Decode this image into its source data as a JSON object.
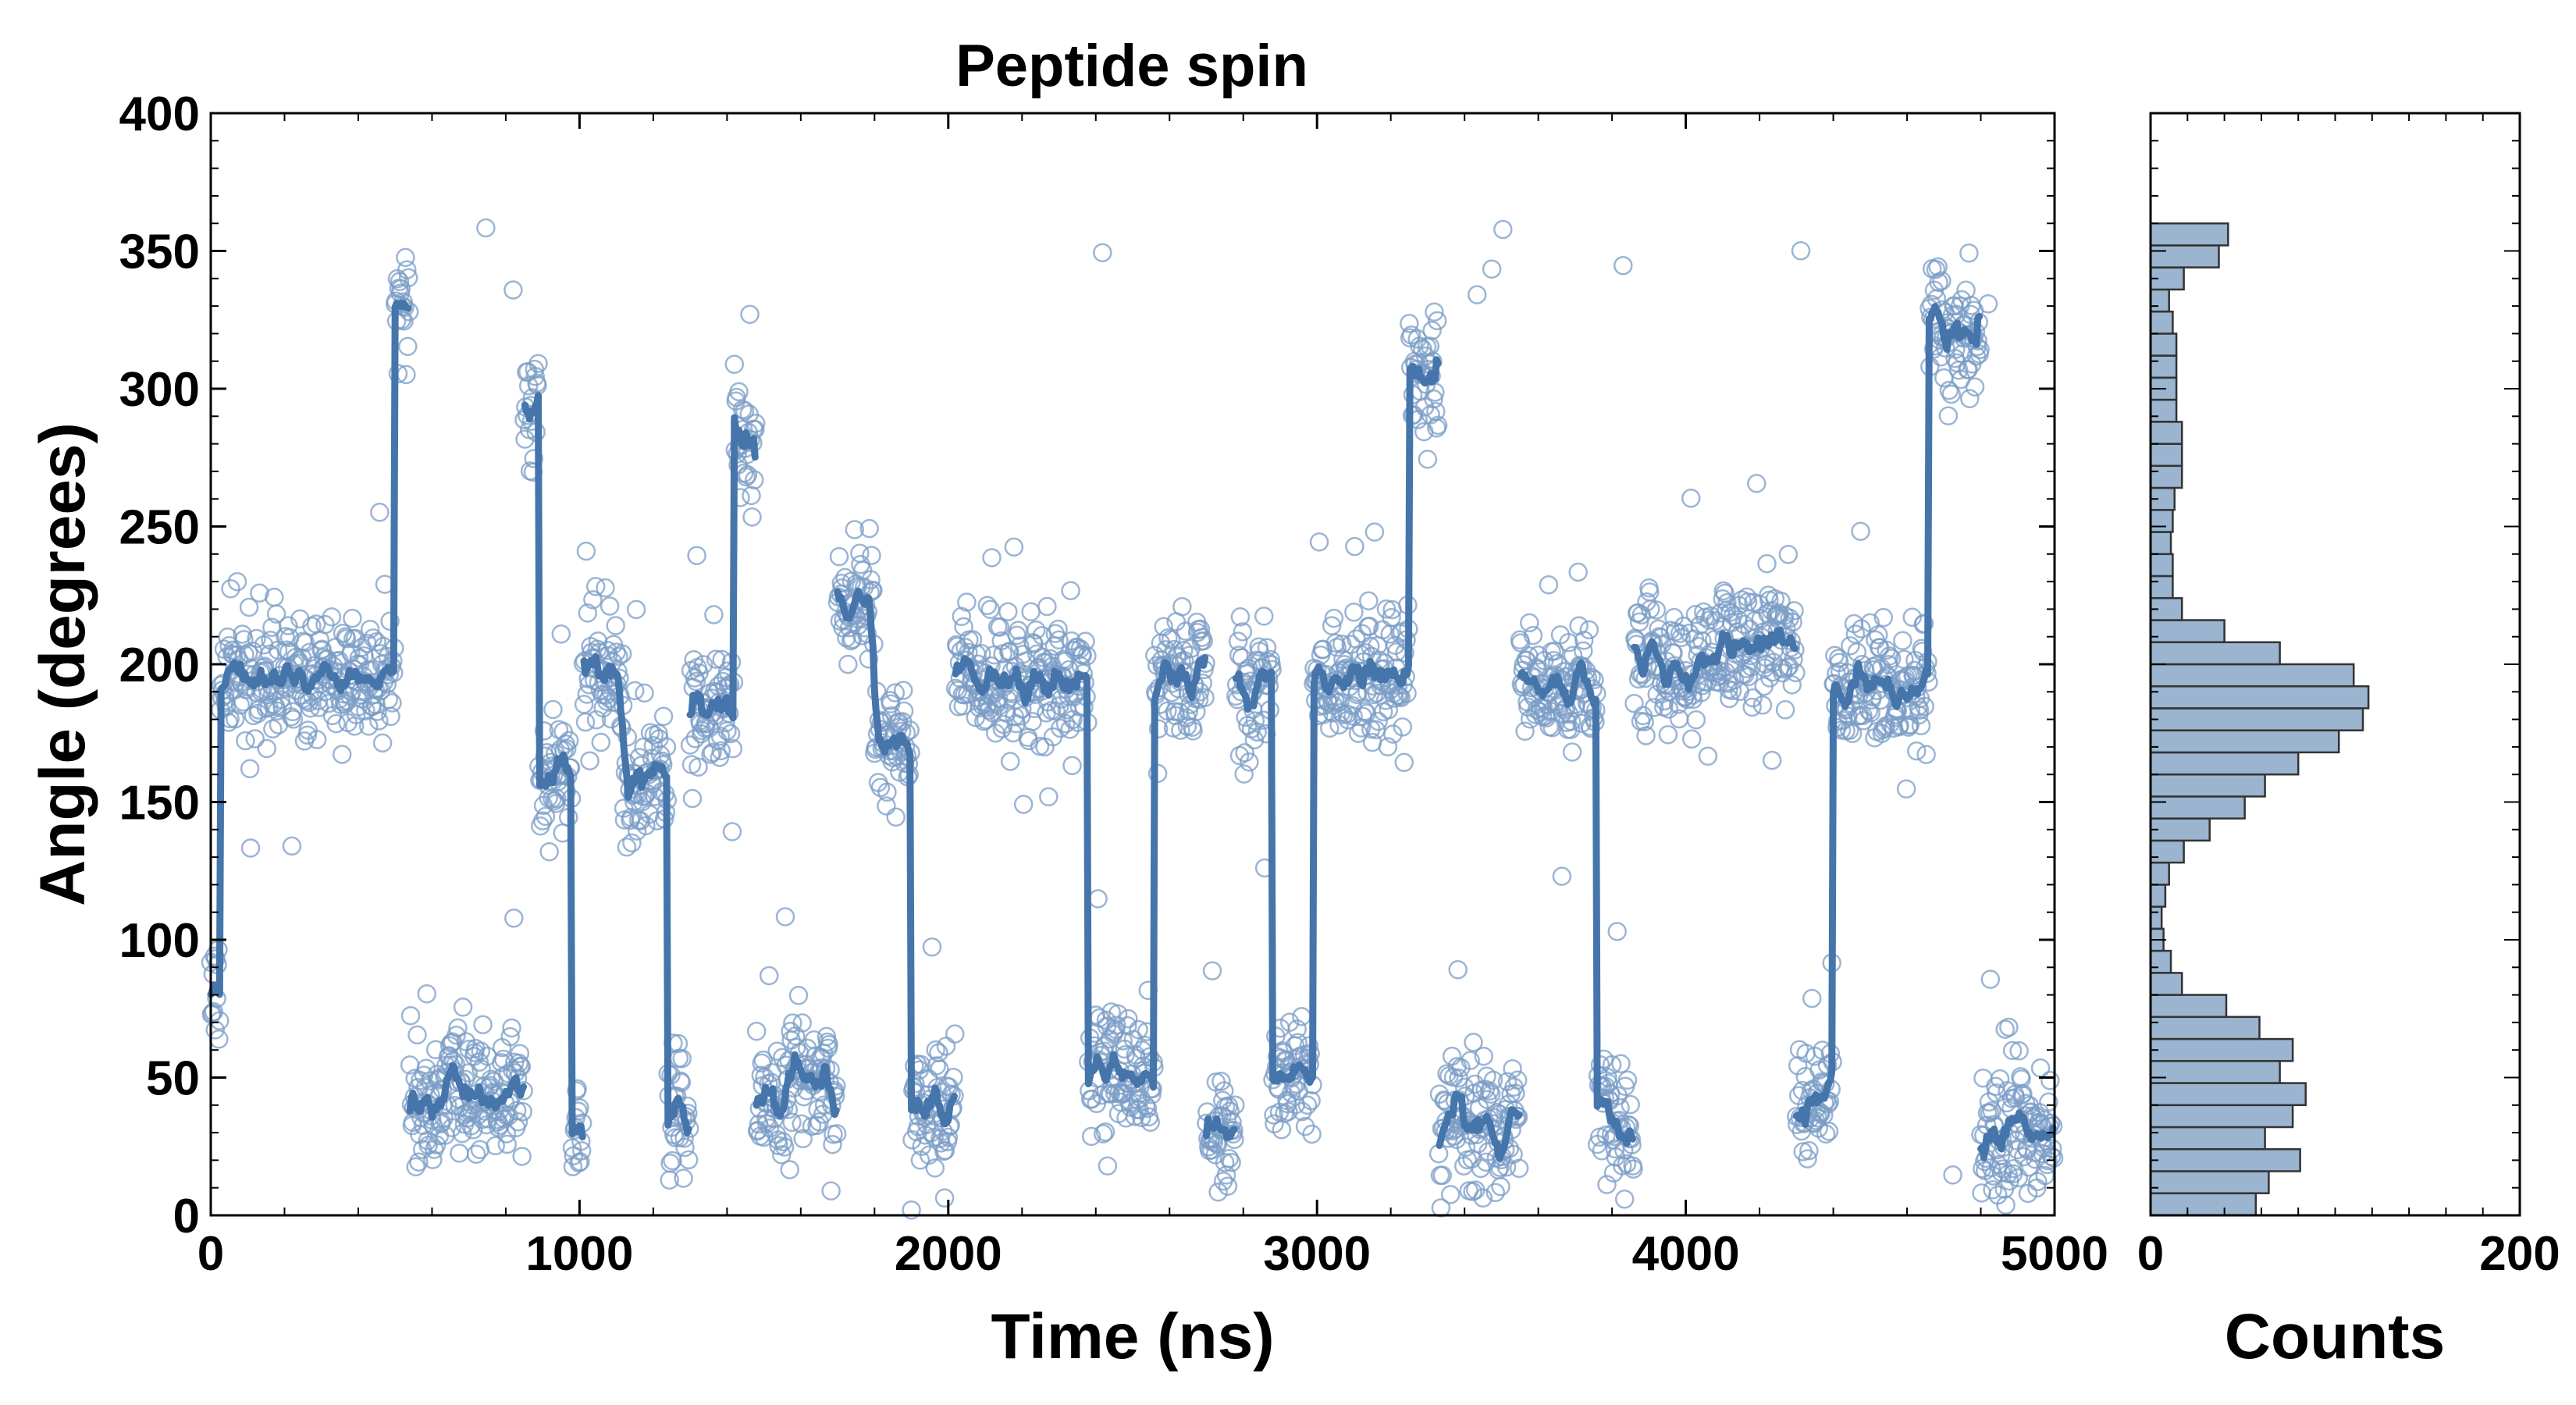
{
  "chart_data": [
    {
      "type": "scatter",
      "title": "Peptide spin",
      "xlabel": "Time (ns)",
      "ylabel": "Angle (degrees)",
      "xlim": [
        0,
        5000
      ],
      "ylim": [
        0,
        400
      ],
      "x_ticks": [
        "0",
        "1000",
        "2000",
        "3000",
        "4000",
        "5000"
      ],
      "y_ticks": [
        "0",
        "50",
        "100",
        "150",
        "200",
        "250",
        "300",
        "350",
        "400"
      ],
      "series": [
        {
          "name": "raw angle samples",
          "style": "open circles",
          "color": "#7a9cc6",
          "n_points": 2500,
          "approx_sample_interval_ns": 2
        },
        {
          "name": "smoothed angle",
          "style": "line",
          "color": "#4575aa"
        }
      ],
      "segments": [
        {
          "t0": 0,
          "t1": 25,
          "level": 80
        },
        {
          "t0": 25,
          "t1": 500,
          "level": 195
        },
        {
          "t0": 500,
          "t1": 540,
          "level": 325
        },
        {
          "t0": 540,
          "t1": 850,
          "level": 45
        },
        {
          "t0": 850,
          "t1": 890,
          "level": 290
        },
        {
          "t0": 890,
          "t1": 980,
          "level": 160
        },
        {
          "t0": 980,
          "t1": 1010,
          "level": 40
        },
        {
          "t0": 1010,
          "t1": 1120,
          "level": 195
        },
        {
          "t0": 1120,
          "t1": 1240,
          "level": 160
        },
        {
          "t0": 1240,
          "t1": 1300,
          "level": 40
        },
        {
          "t0": 1300,
          "t1": 1420,
          "level": 185
        },
        {
          "t0": 1420,
          "t1": 1480,
          "level": 280
        },
        {
          "t0": 1480,
          "t1": 1560,
          "level": 40
        },
        {
          "t0": 1560,
          "t1": 1700,
          "level": 50
        },
        {
          "t0": 1700,
          "t1": 1800,
          "level": 220
        },
        {
          "t0": 1800,
          "t1": 1900,
          "level": 170
        },
        {
          "t0": 1900,
          "t1": 2020,
          "level": 40
        },
        {
          "t0": 2020,
          "t1": 2380,
          "level": 195
        },
        {
          "t0": 2380,
          "t1": 2560,
          "level": 50
        },
        {
          "t0": 2560,
          "t1": 2700,
          "level": 195
        },
        {
          "t0": 2700,
          "t1": 2780,
          "level": 30
        },
        {
          "t0": 2780,
          "t1": 2880,
          "level": 190
        },
        {
          "t0": 2880,
          "t1": 2990,
          "level": 50
        },
        {
          "t0": 2990,
          "t1": 3250,
          "level": 195
        },
        {
          "t0": 3250,
          "t1": 3330,
          "level": 305
        },
        {
          "t0": 3330,
          "t1": 3550,
          "level": 35
        },
        {
          "t0": 3550,
          "t1": 3760,
          "level": 190
        },
        {
          "t0": 3760,
          "t1": 3860,
          "level": 35
        },
        {
          "t0": 3860,
          "t1": 4050,
          "level": 200
        },
        {
          "t0": 4050,
          "t1": 4220,
          "level": 205
        },
        {
          "t0": 4220,
          "t1": 4300,
          "level": 210
        },
        {
          "t0": 4300,
          "t1": 4400,
          "level": 45
        },
        {
          "t0": 4400,
          "t1": 4660,
          "level": 190
        },
        {
          "t0": 4660,
          "t1": 4800,
          "level": 320
        },
        {
          "t0": 4800,
          "t1": 5000,
          "level": 30
        }
      ]
    },
    {
      "type": "bar",
      "orientation": "horizontal",
      "title": "",
      "xlabel": "Counts",
      "ylabel": "",
      "xlim": [
        0,
        200
      ],
      "ylim": [
        0,
        400
      ],
      "x_ticks": [
        "0",
        "200"
      ],
      "bin_width_degrees": 8,
      "color": "#9bb4d0",
      "edge_color": "#333333",
      "bins_lower_edge": [
        0,
        8,
        16,
        24,
        32,
        40,
        48,
        56,
        64,
        72,
        80,
        88,
        96,
        104,
        112,
        120,
        128,
        136,
        144,
        152,
        160,
        168,
        176,
        184,
        192,
        200,
        208,
        216,
        224,
        232,
        240,
        248,
        256,
        264,
        272,
        280,
        288,
        296,
        304,
        312,
        320,
        328,
        336,
        344,
        352
      ],
      "values": [
        57,
        64,
        81,
        62,
        77,
        84,
        70,
        77,
        59,
        41,
        17,
        11,
        7,
        6,
        8,
        10,
        18,
        32,
        51,
        62,
        80,
        102,
        115,
        118,
        110,
        70,
        40,
        17,
        12,
        12,
        11,
        12,
        13,
        17,
        17,
        17,
        14,
        14,
        14,
        14,
        12,
        10,
        18,
        37,
        42
      ]
    }
  ]
}
